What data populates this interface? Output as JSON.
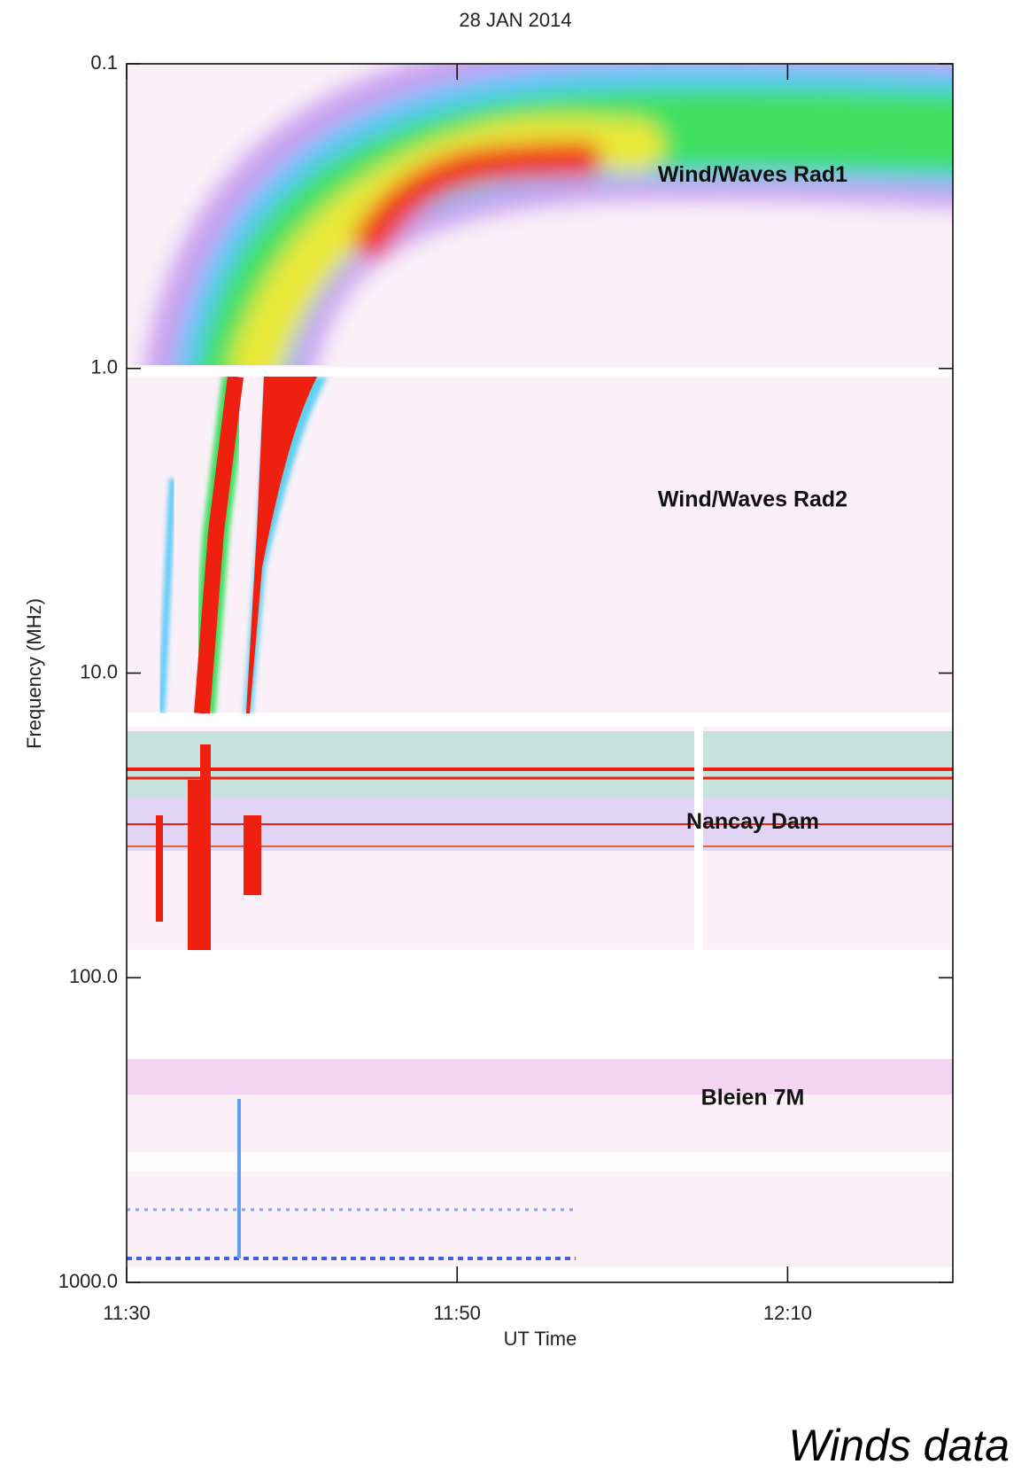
{
  "chart_data": {
    "type": "spectrogram",
    "title": "28 JAN 2014",
    "x_label": "UT Time",
    "y_label": "Frequency (MHz)",
    "xlim": [
      690,
      740
    ],
    "xticks": [
      {
        "value": 690,
        "label": "11:30"
      },
      {
        "value": 710,
        "label": "11:50"
      },
      {
        "value": 730,
        "label": "12:10"
      }
    ],
    "ylim": [
      0.1,
      1000
    ],
    "yticks": [
      0.1,
      {
        "value": 1,
        "label": "1.0"
      },
      {
        "value": 10,
        "label": "10.0"
      },
      {
        "value": 100,
        "label": "100.0"
      },
      {
        "value": 1000,
        "label": "1000.0"
      }
    ],
    "y_log": true,
    "y_inverted": true,
    "instruments": [
      {
        "name": "Wind/Waves Rad1",
        "freq_range": [
          0.1,
          0.99
        ]
      },
      {
        "name": "Wind/Waves Rad2",
        "freq_range": [
          1.06,
          13.5
        ]
      },
      {
        "name": "Nancay Dam",
        "freq_range": [
          15,
          81
        ]
      },
      {
        "name": "Bleien 7M",
        "freq_range": [
          185,
          890
        ]
      }
    ],
    "caption": "Winds data"
  }
}
